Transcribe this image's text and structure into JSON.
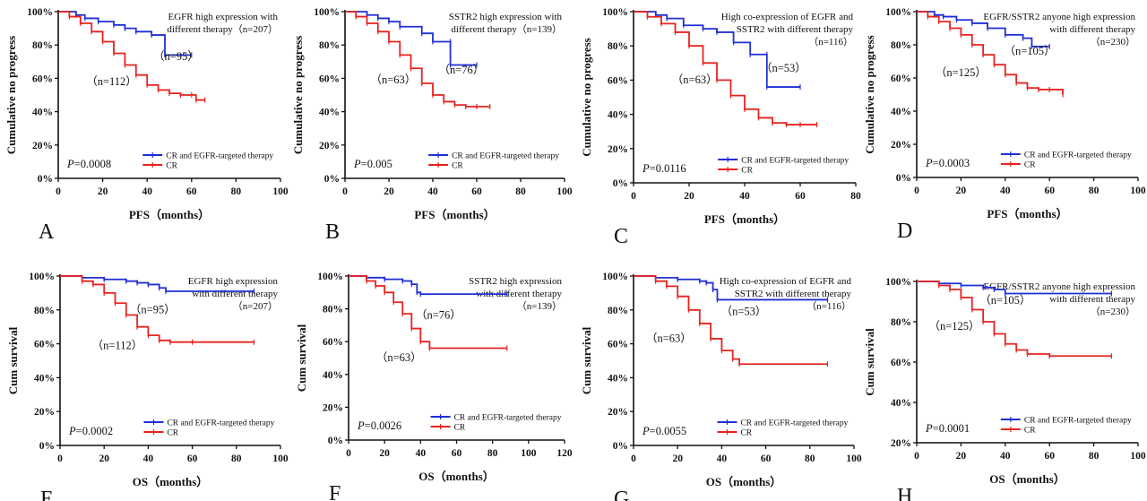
{
  "colors": {
    "treated": "#1f2fd6",
    "control": "#e8231f",
    "axis": "#111111"
  },
  "chart_data": [
    {
      "panel": "A",
      "type": "line",
      "ylabel": "Cumulative no progress",
      "xlabel": "PFS（months）",
      "xlim": [
        0,
        100
      ],
      "xticks": [
        0,
        20,
        40,
        60,
        80,
        100
      ],
      "ylim": [
        0,
        100
      ],
      "yticks": [
        0,
        20,
        40,
        60,
        80,
        100
      ],
      "title_lines": [
        "EGFR high expression with",
        "different therapy（n=207）"
      ],
      "p_value": "=0.0008",
      "n_labels": [
        {
          "text": "（n=95）",
          "x": 53,
          "y": 71
        },
        {
          "text": "（n=112）",
          "x": 24,
          "y": 56
        }
      ],
      "legend": [
        "CR and EGFR-targeted therapy",
        "CR"
      ],
      "series": [
        {
          "name": "CR and EGFR-targeted therapy",
          "x": [
            0,
            8,
            12,
            18,
            25,
            30,
            35,
            42,
            48,
            48,
            60
          ],
          "y": [
            100,
            98,
            96,
            94,
            92,
            90,
            88,
            86,
            84,
            74,
            74
          ]
        },
        {
          "name": "CR",
          "x": [
            0,
            5,
            10,
            15,
            20,
            25,
            30,
            35,
            40,
            45,
            50,
            55,
            60,
            62,
            66
          ],
          "y": [
            100,
            97,
            93,
            88,
            82,
            75,
            68,
            62,
            56,
            53,
            51,
            50,
            50,
            47,
            47
          ]
        }
      ]
    },
    {
      "panel": "B",
      "type": "line",
      "ylabel": "Cumulative no progress",
      "xlabel": "PFS（months）",
      "xlim": [
        0,
        100
      ],
      "xticks": [
        0,
        20,
        40,
        60,
        80,
        100
      ],
      "ylim": [
        0,
        100
      ],
      "yticks": [
        0,
        20,
        40,
        60,
        80,
        100
      ],
      "title_lines": [
        "SSTR2 high expression with",
        "different therapy（n=139）"
      ],
      "p_value": "=0.005",
      "n_labels": [
        {
          "text": "（n=76）",
          "x": 53,
          "y": 63
        },
        {
          "text": "（n=63）",
          "x": 22,
          "y": 57
        }
      ],
      "legend": [
        "CR and EGFR-targeted therapy",
        "CR"
      ],
      "series": [
        {
          "name": "CR and EGFR-targeted therapy",
          "x": [
            0,
            10,
            15,
            20,
            25,
            35,
            40,
            48,
            48,
            60
          ],
          "y": [
            100,
            98,
            96,
            94,
            91,
            87,
            82,
            82,
            68,
            68
          ]
        },
        {
          "name": "CR",
          "x": [
            0,
            5,
            10,
            15,
            20,
            25,
            30,
            35,
            40,
            45,
            50,
            55,
            60,
            66
          ],
          "y": [
            100,
            97,
            93,
            88,
            82,
            74,
            66,
            57,
            50,
            46,
            44,
            43,
            43,
            43
          ]
        }
      ]
    },
    {
      "panel": "C",
      "type": "line",
      "ylabel": "Cumulative no progress",
      "xlabel": "PFS（months）",
      "xlim": [
        0,
        80
      ],
      "xticks": [
        0,
        20,
        40,
        60,
        80
      ],
      "ylim": [
        0,
        100
      ],
      "yticks": [
        0,
        20,
        40,
        60,
        80,
        100
      ],
      "title_lines": [
        "High co-expression of EGFR and",
        "SSTR2 with different therapy",
        "（n=116）"
      ],
      "p_value": "=0.0116",
      "n_labels": [
        {
          "text": "（n=53）",
          "x": 54,
          "y": 65
        },
        {
          "text": "（n=63）",
          "x": 22,
          "y": 58
        }
      ],
      "legend": [
        "CR and EGFR-targeted therapy",
        "CR"
      ],
      "series": [
        {
          "name": "CR and EGFR-targeted therapy",
          "x": [
            0,
            8,
            12,
            18,
            25,
            30,
            36,
            42,
            48,
            48,
            60
          ],
          "y": [
            100,
            98,
            96,
            92,
            90,
            88,
            82,
            75,
            75,
            56,
            56
          ]
        },
        {
          "name": "CR",
          "x": [
            0,
            5,
            10,
            15,
            20,
            25,
            30,
            35,
            40,
            45,
            50,
            55,
            60,
            66
          ],
          "y": [
            100,
            97,
            93,
            88,
            80,
            70,
            60,
            51,
            43,
            38,
            35,
            34,
            34,
            34
          ]
        }
      ]
    },
    {
      "panel": "D",
      "type": "line",
      "ylabel": "Cumulative no progress",
      "xlabel": "PFS（months）",
      "xlim": [
        0,
        100
      ],
      "xticks": [
        0,
        20,
        40,
        60,
        80,
        100
      ],
      "ylim": [
        0,
        100
      ],
      "yticks": [
        0,
        20,
        40,
        60,
        80,
        100
      ],
      "title_lines": [
        "EGFR/SSTR2 anyone high expression",
        "with different therapy",
        "（n=230）"
      ],
      "p_value": "=0.0003",
      "n_labels": [
        {
          "text": "（n=105）",
          "x": 51,
          "y": 74
        },
        {
          "text": "（n=125）",
          "x": 20,
          "y": 61
        }
      ],
      "legend": [
        "CR and EGFR-targeted therapy",
        "CR"
      ],
      "series": [
        {
          "name": "CR and EGFR-targeted therapy",
          "x": [
            0,
            8,
            12,
            18,
            25,
            32,
            40,
            48,
            52,
            60
          ],
          "y": [
            100,
            98,
            97,
            95,
            93,
            90,
            86,
            84,
            79,
            79
          ]
        },
        {
          "name": "CR",
          "x": [
            0,
            5,
            10,
            15,
            20,
            25,
            30,
            35,
            40,
            45,
            50,
            55,
            60,
            66
          ],
          "y": [
            100,
            97,
            94,
            90,
            86,
            80,
            74,
            68,
            62,
            57,
            54,
            53,
            53,
            50
          ]
        }
      ]
    },
    {
      "panel": "E",
      "type": "line",
      "ylabel": "Cum survival",
      "xlabel": "OS（months）",
      "xlim": [
        0,
        100
      ],
      "xticks": [
        0,
        20,
        40,
        60,
        80,
        100
      ],
      "ylim": [
        0,
        100
      ],
      "yticks": [
        0,
        20,
        40,
        60,
        80,
        100
      ],
      "title_lines": [
        "EGFR high expression",
        "with different therapy",
        "（n=207）"
      ],
      "p_value": "=0.0002",
      "n_labels": [
        {
          "text": "（n=95）",
          "x": 42,
          "y": 78
        },
        {
          "text": "（n=112）",
          "x": 26,
          "y": 57
        }
      ],
      "legend": [
        "CR and EGFR-targeted therapy",
        "CR"
      ],
      "series": [
        {
          "name": "CR and EGFR-targeted therapy",
          "x": [
            0,
            10,
            20,
            30,
            35,
            40,
            45,
            48,
            88
          ],
          "y": [
            100,
            99,
            98,
            97,
            96,
            95,
            93,
            91,
            91
          ]
        },
        {
          "name": "CR",
          "x": [
            0,
            10,
            15,
            20,
            25,
            30,
            35,
            40,
            45,
            50,
            60,
            88
          ],
          "y": [
            100,
            97,
            95,
            90,
            84,
            77,
            70,
            65,
            62,
            61,
            61,
            61
          ]
        }
      ]
    },
    {
      "panel": "F",
      "type": "line",
      "ylabel": "Cum survival",
      "xlabel": "OS（months）",
      "xlim": [
        0,
        120
      ],
      "xticks": [
        0,
        20,
        40,
        60,
        80,
        100,
        120
      ],
      "ylim": [
        0,
        100
      ],
      "yticks": [
        0,
        20,
        40,
        60,
        80,
        100
      ],
      "title_lines": [
        "SSTR2 high expression",
        "with different therapy",
        "（n=139）"
      ],
      "p_value": "=0.0026",
      "n_labels": [
        {
          "text": "（n=76）",
          "x": 50,
          "y": 74
        },
        {
          "text": "（n=63）",
          "x": 28,
          "y": 48
        }
      ],
      "legend": [
        "CR and EGFR-targeted therapy",
        "CR"
      ],
      "series": [
        {
          "name": "CR and EGFR-targeted therapy",
          "x": [
            0,
            10,
            20,
            30,
            35,
            38,
            40,
            88
          ],
          "y": [
            100,
            99,
            98,
            97,
            95,
            90,
            89,
            89
          ]
        },
        {
          "name": "CR",
          "x": [
            0,
            10,
            15,
            20,
            25,
            30,
            35,
            40,
            45,
            88
          ],
          "y": [
            100,
            97,
            94,
            90,
            84,
            77,
            68,
            60,
            56,
            56
          ]
        }
      ]
    },
    {
      "panel": "G",
      "type": "line",
      "ylabel": "Cum survival",
      "xlabel": "OS（months）",
      "xlim": [
        0,
        100
      ],
      "xticks": [
        0,
        20,
        40,
        60,
        80,
        100
      ],
      "ylim": [
        0,
        100
      ],
      "yticks": [
        0,
        20,
        40,
        60,
        80,
        100
      ],
      "title_lines": [
        "High co-expression of EGFR and",
        "SSTR2 with different therapy",
        "（n=116）"
      ],
      "p_value": "=0.0055",
      "n_labels": [
        {
          "text": "（n=53）",
          "x": 50,
          "y": 77
        },
        {
          "text": "（n=63）",
          "x": 16,
          "y": 61
        }
      ],
      "legend": [
        "CR and EGFR-targeted therapy",
        "CR"
      ],
      "series": [
        {
          "name": "CR and EGFR-targeted therapy",
          "x": [
            0,
            10,
            20,
            30,
            33,
            36,
            38,
            88
          ],
          "y": [
            100,
            99,
            98,
            97,
            96,
            92,
            86,
            86
          ]
        },
        {
          "name": "CR",
          "x": [
            0,
            10,
            15,
            20,
            25,
            30,
            35,
            40,
            45,
            48,
            88
          ],
          "y": [
            100,
            97,
            94,
            88,
            80,
            72,
            63,
            56,
            51,
            48,
            48
          ]
        }
      ]
    },
    {
      "panel": "H",
      "type": "line",
      "ylabel": "Cum survival",
      "xlabel": "OS（months）",
      "xlim": [
        0,
        100
      ],
      "xticks": [
        0,
        20,
        40,
        60,
        80,
        100
      ],
      "ylim": [
        20,
        100
      ],
      "yticks": [
        20,
        40,
        60,
        80,
        100
      ],
      "title_lines": [
        "EGFR/SSTR2 anyone high expression",
        "with different therapy",
        "（n=230）"
      ],
      "p_value": "=0.0001",
      "n_labels": [
        {
          "text": "（n=105）",
          "x": 40,
          "y": 89
        },
        {
          "text": "（n=125）",
          "x": 17,
          "y": 76
        }
      ],
      "legend": [
        "CR and EGFR-targeted therapy",
        "CR"
      ],
      "series": [
        {
          "name": "CR and EGFR-targeted therapy",
          "x": [
            0,
            10,
            20,
            30,
            35,
            40,
            88
          ],
          "y": [
            100,
            99,
            98,
            97,
            96,
            94,
            94
          ]
        },
        {
          "name": "CR",
          "x": [
            0,
            10,
            15,
            20,
            25,
            30,
            35,
            40,
            45,
            50,
            60,
            88
          ],
          "y": [
            100,
            98,
            96,
            92,
            86,
            80,
            74,
            69,
            66,
            64,
            63,
            63
          ]
        }
      ]
    }
  ]
}
